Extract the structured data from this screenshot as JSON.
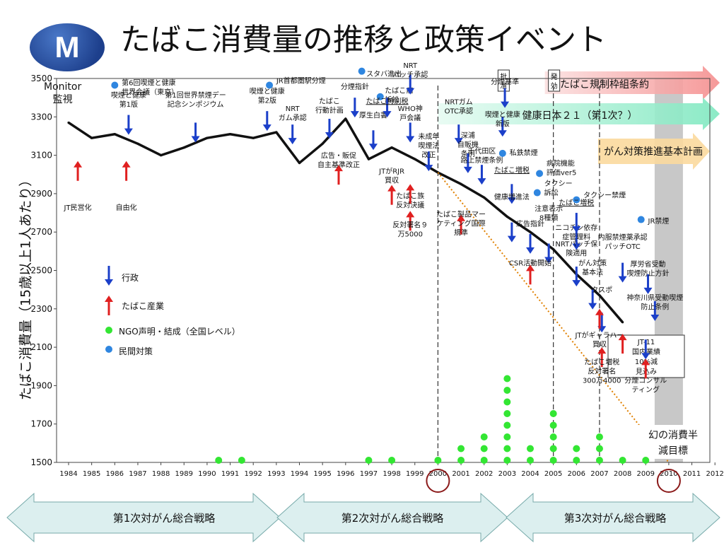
{
  "logo": {
    "letter": "M"
  },
  "title": "たばこ消費量の推移と政策イベント",
  "y_axis_label": "たばこ消費量（15歳以上1人あたり）",
  "monitor_label_line1": "Monitor",
  "monitor_label_line2": "監視",
  "legend": [
    {
      "label": "行政",
      "kind": "down-arrow",
      "color": "#1b3fc9"
    },
    {
      "label": "たばこ産業",
      "kind": "up-arrow",
      "color": "#e02020"
    },
    {
      "label": "NGO声明・結成（全国レベル）",
      "kind": "dot",
      "color": "#33e633"
    },
    {
      "label": "民間対策",
      "kind": "dot",
      "color": "#2f86e0"
    }
  ],
  "colors": {
    "gov": "#1b3fc9",
    "industry": "#e02020",
    "ngo": "#33e633",
    "private": "#2f86e0",
    "target": "#e08000"
  },
  "banners": [
    {
      "label": "たばこ規制枠組条約",
      "tag1": "批准",
      "tag2": "発効",
      "color": "#f4a6a6"
    },
    {
      "label": "健康日本２１（第1次？）",
      "color": "#99f0cc"
    },
    {
      "label": "がん対策推進基本計画",
      "color": "#fbd99d"
    }
  ],
  "strategies": [
    "第1次対がん総合戦略",
    "第2次対がん総合戦略",
    "第3次対がん総合戦略"
  ],
  "chart_data": {
    "type": "line",
    "x": [
      1984,
      1985,
      1986,
      1987,
      1988,
      1989,
      1990,
      1991,
      1992,
      1993,
      1994,
      1995,
      1996,
      1997,
      1998,
      1999,
      2000,
      2001,
      2002,
      2003,
      2004,
      2005,
      2006,
      2007,
      2008
    ],
    "series": [
      {
        "values": [
          3270,
          3190,
          3210,
          3160,
          3100,
          3140,
          3190,
          3210,
          3190,
          3220,
          3060,
          3160,
          3290,
          3080,
          3140,
          3080,
          3010,
          2950,
          2880,
          2780,
          2700,
          2610,
          2480,
          2370,
          2230
        ]
      }
    ],
    "x_ticks": [
      1984,
      1985,
      1986,
      1987,
      1988,
      1989,
      1990,
      1991,
      1992,
      1993,
      1994,
      1995,
      1996,
      1997,
      1998,
      1999,
      2000,
      2001,
      2002,
      2003,
      2004,
      2005,
      2006,
      2007,
      2008,
      2009,
      2010,
      2011,
      2012
    ],
    "y_ticks": [
      1500,
      1700,
      1900,
      2100,
      2300,
      2500,
      2700,
      2900,
      3100,
      3300,
      3500
    ],
    "ylim": [
      1500,
      3500
    ],
    "xlim": [
      1984,
      2012
    ],
    "target_line": {
      "x": [
        2000,
        2010
      ],
      "y": [
        3010,
        1500
      ]
    },
    "target_label": [
      "幻の消費半",
      "減目標"
    ],
    "dashed_years": [
      2000,
      2005,
      2007
    ],
    "circled_years": [
      2000,
      2010
    ],
    "shaded_year": 2010,
    "ngo_counts": [
      {
        "x": 1990.5,
        "n": 1
      },
      {
        "x": 1991.5,
        "n": 1
      },
      {
        "x": 1997,
        "n": 1
      },
      {
        "x": 1998,
        "n": 1
      },
      {
        "x": 2000,
        "n": 1
      },
      {
        "x": 2001,
        "n": 2
      },
      {
        "x": 2002,
        "n": 3
      },
      {
        "x": 2003,
        "n": 8
      },
      {
        "x": 2004,
        "n": 2
      },
      {
        "x": 2005,
        "n": 5
      },
      {
        "x": 2006,
        "n": 2
      },
      {
        "x": 2007,
        "n": 3
      },
      {
        "x": 2008,
        "n": 1
      },
      {
        "x": 2009,
        "n": 1
      }
    ],
    "events": [
      {
        "x": 1984.4,
        "kind": "industry",
        "ay": 3070,
        "label": [
          "JT民営化"
        ],
        "ly": 2815
      },
      {
        "x": 1986.5,
        "kind": "industry",
        "ay": 3070,
        "label": [
          "自由化"
        ],
        "ly": 2815
      },
      {
        "x": 1986.6,
        "kind": "gov",
        "ay": 3310,
        "label": [
          "喫煙と健康",
          "第1版"
        ],
        "ly": 3400
      },
      {
        "x": 1986,
        "kind": "private",
        "ay": 3465,
        "label": [
          "第6回喫煙と健康",
          "世界会議（東京）"
        ],
        "lx": 1986.3,
        "ly": 3480
      },
      {
        "x": 1989.5,
        "kind": "gov",
        "ay": 3270,
        "label": [
          "第1回世界禁煙デー",
          "記念シンポジウム"
        ],
        "ly": 3400
      },
      {
        "x": 1992.7,
        "kind": "private",
        "ay": 3465,
        "label": [
          "JR首都圏駅分煙"
        ],
        "lx": 1993.0,
        "ly": 3490
      },
      {
        "x": 1992.6,
        "kind": "gov",
        "ay": 3330,
        "label": [
          "喫煙と健康",
          "第2版"
        ],
        "ly": 3420
      },
      {
        "x": 1993.7,
        "kind": "gov",
        "ay": 3260,
        "label": [
          "NRT",
          "ガム承認"
        ],
        "ly": 3330
      },
      {
        "x": 1995.3,
        "kind": "gov",
        "ay": 3290,
        "label": [
          "たばこ",
          "行動計画"
        ],
        "ly": 3370
      },
      {
        "x": 1996.4,
        "kind": "gov",
        "ay": 3400,
        "label": [
          "分煙指針"
        ],
        "ly": 3445
      },
      {
        "x": 1995.7,
        "kind": "industry",
        "ay": 3050,
        "label": [
          "広告・販促",
          "自主基準改正"
        ],
        "ly": 3085
      },
      {
        "x": 1996.7,
        "kind": "private",
        "ay": 3538,
        "label": [
          "スタバ進出"
        ],
        "lx": 1996.9,
        "ly": 3525
      },
      {
        "x": 1997.2,
        "kind": "gov",
        "ay": 3230,
        "label": [
          "厚生白書"
        ],
        "ly": 3295
      },
      {
        "x": 1997.5,
        "kind": "private",
        "ay": 3405,
        "label": [
          "たばこ病",
          "訴訟"
        ],
        "lx": 1997.7,
        "ly": 3440
      },
      {
        "x": 1997.8,
        "kind": "gov",
        "ay": 3400,
        "label": [
          "たばこ特別税"
        ],
        "ly": 3370,
        "underline": true
      },
      {
        "x": 1998.8,
        "kind": "gov",
        "ay": 3520,
        "label": [
          "NRT",
          "パッチ承認"
        ],
        "ly": 3555
      },
      {
        "x": 1998.8,
        "kind": "gov",
        "ay": 3270,
        "label": [
          "WHO神",
          "戸会議"
        ],
        "ly": 3330
      },
      {
        "x": 1999.6,
        "kind": "gov",
        "ay": 3120,
        "label": [
          "未成年",
          "喫煙法",
          "改正"
        ],
        "ly": 3185
      },
      {
        "x": 1998,
        "kind": "industry",
        "ay": 2945,
        "label": [
          "JTがRJR",
          "買収"
        ],
        "ly": 3005
      },
      {
        "x": 1998.8,
        "kind": "industry",
        "ay": 2950,
        "label": [
          "たばこ族",
          "反対決議"
        ],
        "ly": 2875
      },
      {
        "x": 1998.8,
        "kind": "industry",
        "ay": 2810,
        "label": [
          "反対署名９",
          "万5000"
        ],
        "ly": 2725
      },
      {
        "x": 2000.9,
        "kind": "gov",
        "ay": 3260,
        "label": [
          "NRTガム",
          "OTC承認"
        ],
        "ly": 3365
      },
      {
        "x": 2001.3,
        "kind": "gov",
        "ay": 3110,
        "label": [
          "深浦",
          "自販機",
          "条例"
        ],
        "ly": 3190
      },
      {
        "x": 2001.9,
        "kind": "gov",
        "ay": 3050,
        "label": [
          "千代田区",
          "路上禁煙条例"
        ],
        "ly": 3110
      },
      {
        "x": 2001,
        "kind": "industry",
        "ay": 2790,
        "label": [
          "たばこ製品マー",
          "ケティング国際",
          "規準"
        ],
        "ly": 2780
      },
      {
        "x": 2002.9,
        "kind": "gov",
        "ay": 3450,
        "label": [
          "分煙基準"
        ],
        "ly": 3470
      },
      {
        "x": 2002.8,
        "kind": "gov",
        "ay": 3300,
        "label": [
          "喫煙と健康",
          "新版"
        ],
        "ly": 3300
      },
      {
        "x": 2002.8,
        "kind": "private",
        "ay": 3110,
        "label": [
          "私鉄禁煙"
        ],
        "lx": 2003.1,
        "ly": 3115
      },
      {
        "x": 2003.2,
        "kind": "gov",
        "ay": 2950,
        "label": [
          "たばこ増税"
        ],
        "ly": 3010,
        "underline": true
      },
      {
        "x": 2003.2,
        "kind": "gov",
        "ay": 2750,
        "label": [
          "健康増進法"
        ],
        "ly": 2870
      },
      {
        "x": 2004.4,
        "kind": "private",
        "ay": 3005,
        "label": [
          "病院機能",
          "評価ver5"
        ],
        "lx": 2004.7,
        "ly": 3060
      },
      {
        "x": 2004.3,
        "kind": "private",
        "ay": 2905,
        "label": [
          "タクシー",
          "訴訟"
        ],
        "lx": 2004.6,
        "ly": 2955
      },
      {
        "x": 2004,
        "kind": "gov",
        "ay": 2690,
        "label": [
          "広告指針"
        ],
        "ly": 2730
      },
      {
        "x": 2004.8,
        "kind": "gov",
        "ay": 2640,
        "label": [
          "注意表示",
          "8種類"
        ],
        "ly": 2810
      },
      {
        "x": 2004,
        "kind": "industry",
        "ay": 2530,
        "label": [
          "CSR活動開始"
        ],
        "ly": 2525
      },
      {
        "x": 2006,
        "kind": "gov",
        "ay": 2710,
        "label": [
          "ニコチン依存",
          "症管理料"
        ],
        "ly": 2710
      },
      {
        "x": 2006,
        "kind": "private",
        "ay": 2868,
        "label": [
          "タクシー禁煙"
        ],
        "lx": 2006.3,
        "ly": 2895
      },
      {
        "x": 2006,
        "kind": "gov",
        "ay": 2800,
        "label": [
          "たばこ増税"
        ],
        "ly": 2840,
        "underline": true
      },
      {
        "x": 2006,
        "kind": "gov",
        "ay": 2520,
        "label": [
          "NRTパッチ保",
          "険適用"
        ],
        "ly": 2625
      },
      {
        "x": 2006.7,
        "kind": "gov",
        "ay": 2400,
        "label": [
          "がん対策",
          "基本法"
        ],
        "ly": 2525
      },
      {
        "x": 2007.1,
        "kind": "gov",
        "ay": 2280,
        "label": [
          "タスポ"
        ],
        "ly": 2385
      },
      {
        "x": 2008.8,
        "kind": "private",
        "ay": 2765,
        "label": [
          "JR禁煙"
        ],
        "lx": 2009.1,
        "ly": 2760
      },
      {
        "x": 2008,
        "kind": "gov",
        "ay": 2540,
        "label": [
          "内服禁煙薬承認",
          "パッチOTC"
        ],
        "ly": 2660
      },
      {
        "x": 2009.1,
        "kind": "gov",
        "ay": 2480,
        "label": [
          "厚労省受動",
          "喫煙防止方針"
        ],
        "ly": 2520
      },
      {
        "x": 2009.4,
        "kind": "gov",
        "ay": 2340,
        "label": [
          "神奈川県受動喫煙",
          "防止条例"
        ],
        "ly": 2345
      },
      {
        "x": 2009,
        "kind": "gov",
        "ay": 2140,
        "label": [],
        "ly": 0
      },
      {
        "x": 2007,
        "kind": "industry",
        "ay": 2300,
        "label": [
          "JTがギャラハー",
          "買収"
        ],
        "ly": 2150
      },
      {
        "x": 2008,
        "kind": "industry",
        "ay": 2170,
        "label": [],
        "ly": 0
      },
      {
        "x": 2007.1,
        "kind": "industry",
        "ay": 2100,
        "label": [
          "たばこ増税",
          "反対署名",
          "300万4000"
        ],
        "ly": 2010
      },
      {
        "x": 2009,
        "kind": "industry",
        "ay": 2040,
        "label": [
          "分煙コンサル",
          "ティング"
        ],
        "ly": 1915
      }
    ],
    "jt_box": [
      "JT-11",
      "国内業績",
      "10%減",
      "見込み"
    ]
  }
}
